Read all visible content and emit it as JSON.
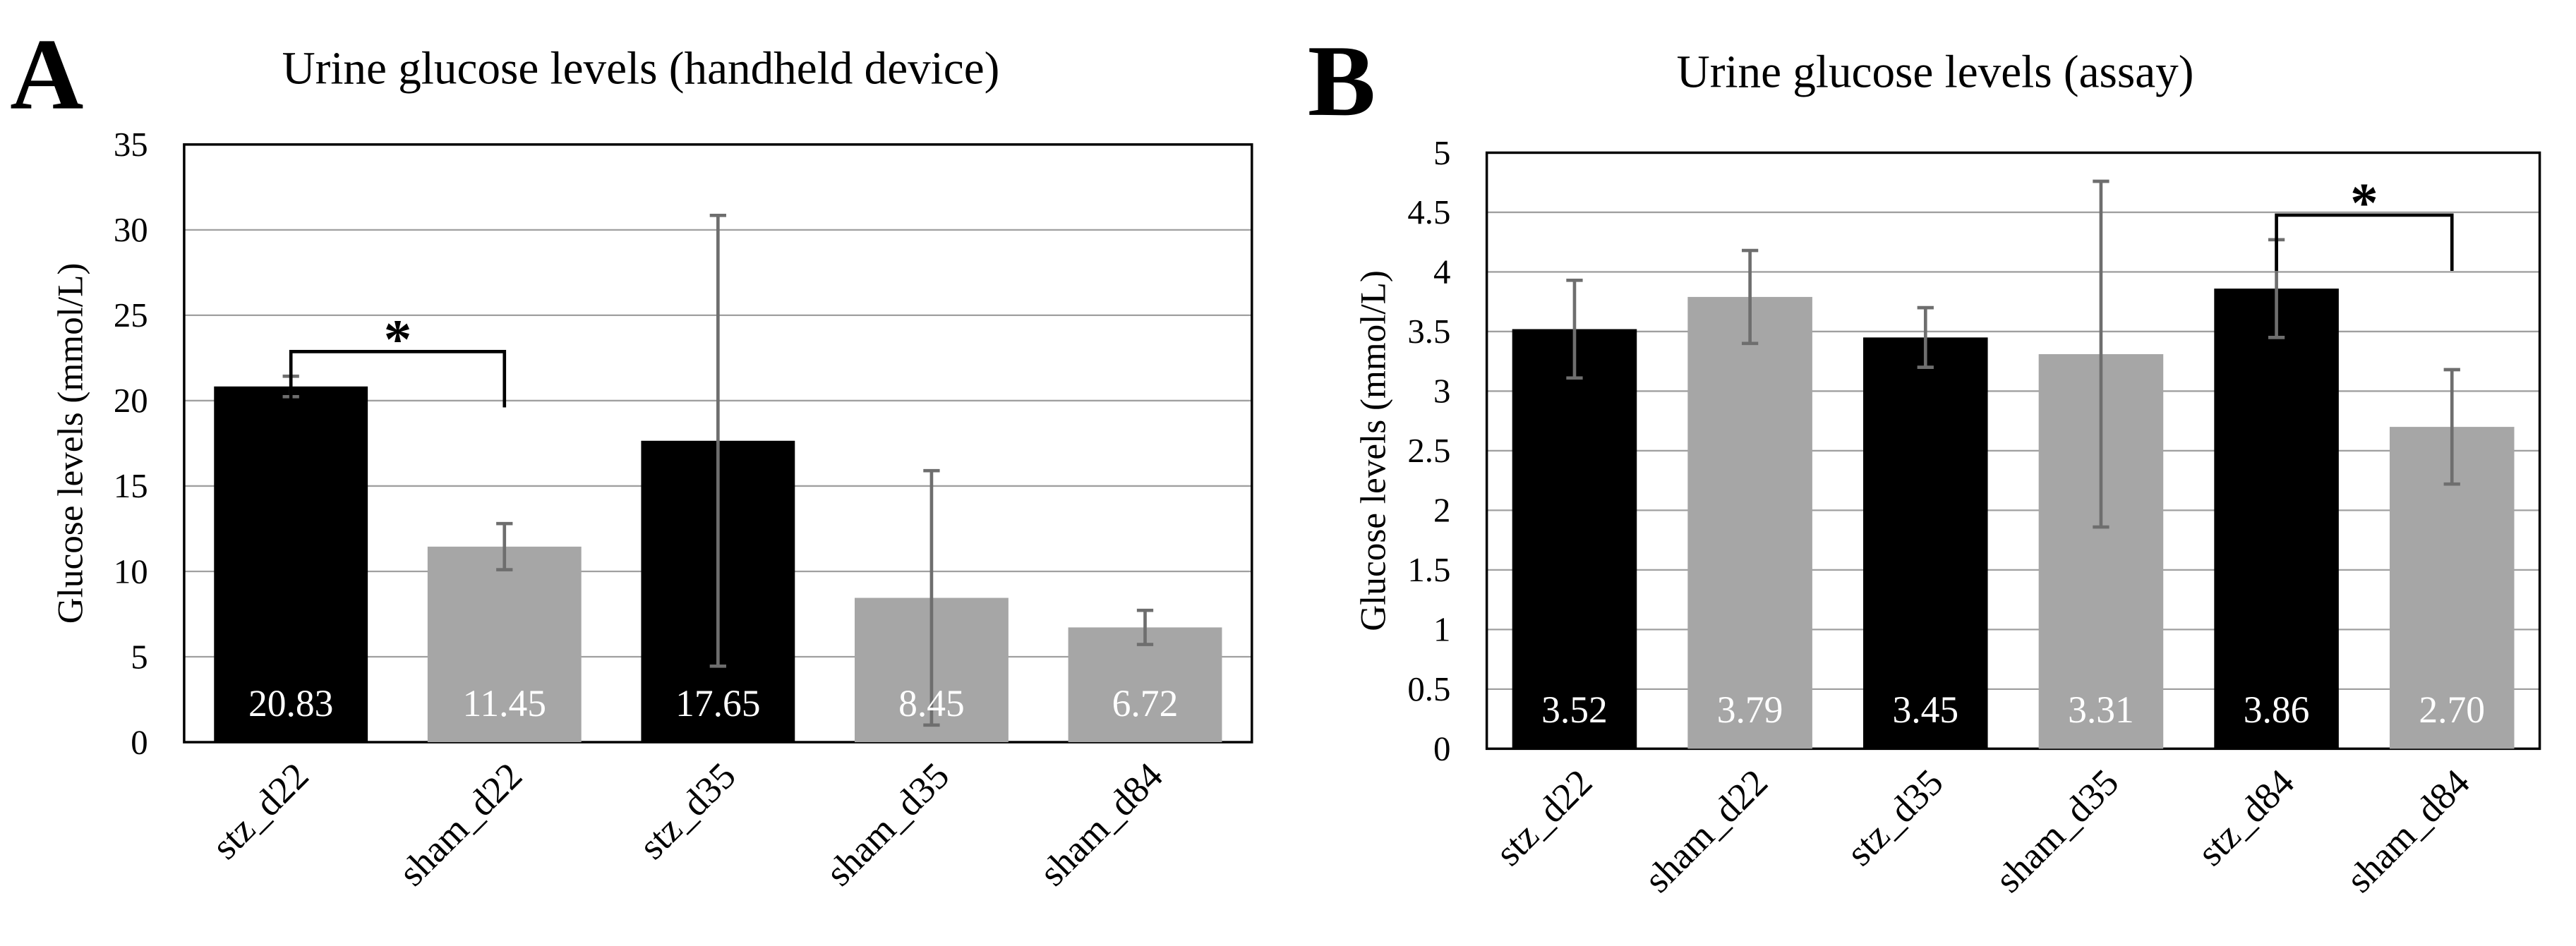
{
  "chart_data": [
    {
      "type": "bar",
      "panel_label": "A",
      "title": "Urine glucose levels (handheld device)",
      "y_label": "Glucose levels (mmol/L)",
      "categories": [
        "stz_d22",
        "sham_d22",
        "stz_d35",
        "sham_d35",
        "sham_d84"
      ],
      "values": [
        20.83,
        11.45,
        17.65,
        8.45,
        6.72
      ],
      "errors": [
        0.6,
        1.35,
        13.2,
        7.45,
        1.0
      ],
      "colors": [
        "#000000",
        "#a6a6a6",
        "#000000",
        "#a6a6a6",
        "#a6a6a6"
      ],
      "ylim": [
        0,
        35
      ],
      "yticks": [
        0,
        5,
        10,
        15,
        20,
        25,
        30,
        35
      ],
      "grid": true,
      "annotations": [
        {
          "text": "*",
          "between": [
            0,
            1
          ]
        }
      ]
    },
    {
      "type": "bar",
      "panel_label": "B",
      "title": "Urine glucose levels (assay)",
      "y_label": "Glucose levels (mmol/L)",
      "categories": [
        "stz_d22",
        "sham_d22",
        "stz_d35",
        "sham_d35",
        "stz_d84",
        "sham_d84"
      ],
      "values": [
        3.52,
        3.79,
        3.45,
        3.31,
        3.86,
        2.7
      ],
      "value_labels": [
        "3.52",
        "3.79",
        "3.45",
        "3.31",
        "3.86",
        "2.70"
      ],
      "errors": [
        0.41,
        0.39,
        0.25,
        1.45,
        0.41,
        0.48
      ],
      "colors": [
        "#000000",
        "#a6a6a6",
        "#000000",
        "#a6a6a6",
        "#000000",
        "#a6a6a6"
      ],
      "ylim": [
        0,
        5
      ],
      "yticks": [
        0,
        0.5,
        1,
        1.5,
        2,
        2.5,
        3,
        3.5,
        4,
        4.5,
        5
      ],
      "grid": true,
      "annotations": [
        {
          "text": "*",
          "between": [
            4,
            5
          ]
        }
      ]
    }
  ]
}
